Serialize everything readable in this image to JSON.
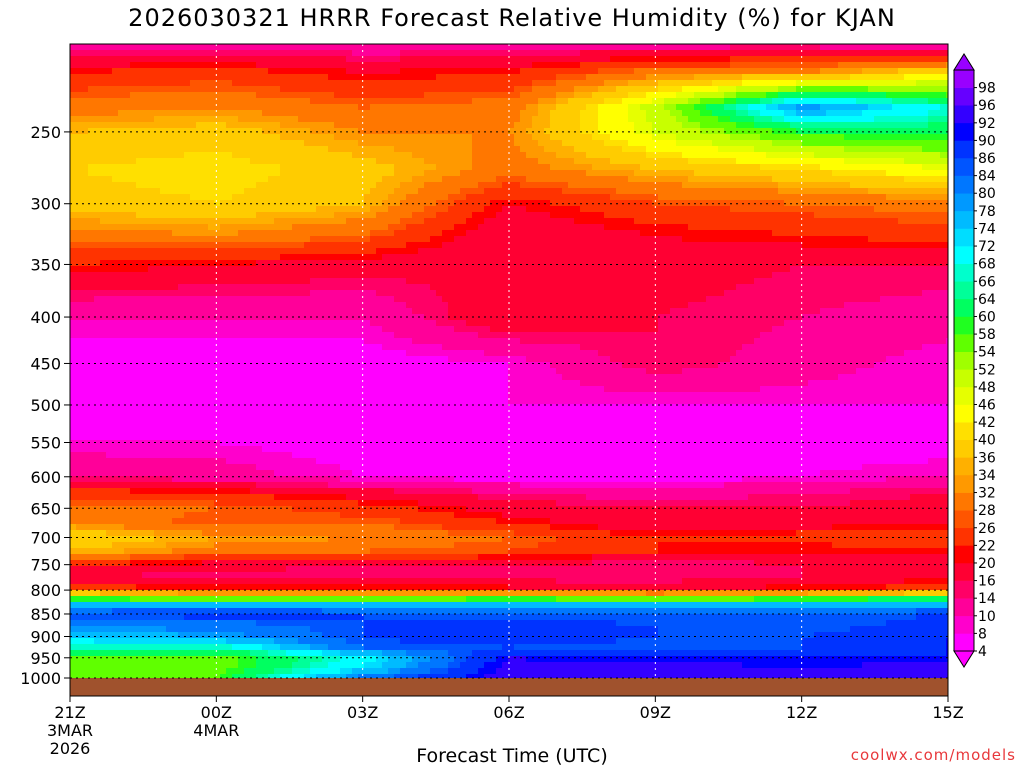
{
  "title": "2026030321 HRRR Forecast Relative Humidity (%) for KJAN",
  "watermark": "coolwx.com/models",
  "chart_data": {
    "type": "heatmap",
    "title": "2026030321 HRRR Forecast Relative Humidity (%) for KJAN",
    "xlabel": "Forecast Time (UTC)",
    "ylabel": "",
    "x_ticks": [
      "21Z",
      "00Z",
      "03Z",
      "06Z",
      "09Z",
      "12Z",
      "15Z"
    ],
    "x_tick_dates": [
      "3MAR\n2026",
      "4MAR",
      "",
      "",
      "",
      "",
      ""
    ],
    "x_range_hours": [
      0,
      18
    ],
    "y_ticks": [
      250,
      300,
      350,
      400,
      450,
      500,
      550,
      600,
      650,
      700,
      750,
      800,
      850,
      900,
      950,
      1000
    ],
    "y_range_hPa": [
      200,
      1000
    ],
    "y_scale": "log-pressure",
    "grid": true,
    "colorbar_levels": [
      4,
      8,
      10,
      14,
      16,
      20,
      22,
      26,
      28,
      32,
      34,
      36,
      40,
      42,
      46,
      48,
      52,
      54,
      58,
      60,
      64,
      66,
      68,
      72,
      74,
      78,
      80,
      84,
      86,
      90,
      92,
      96,
      98
    ],
    "colorbar_colors": [
      "#ff00ff",
      "#ff00cc",
      "#ff0099",
      "#ff0066",
      "#ff0033",
      "#ff0000",
      "#ff3300",
      "#ff5500",
      "#ff7700",
      "#ff9900",
      "#ffb000",
      "#ffcc00",
      "#ffe000",
      "#ffff00",
      "#e6ff00",
      "#c8ff00",
      "#a0ff00",
      "#60ff00",
      "#20ff20",
      "#00ff60",
      "#00ff99",
      "#00ffcc",
      "#00ffff",
      "#00ddff",
      "#00bbff",
      "#0099ff",
      "#0077ff",
      "#0055ff",
      "#0033ff",
      "#0000ff",
      "#3300ff",
      "#6600ff",
      "#9900ff"
    ],
    "colorbar_extend": "both",
    "hours": [
      0,
      3,
      6,
      9,
      12,
      15,
      18
    ],
    "levels_hPa": [
      200,
      215,
      235,
      250,
      275,
      300,
      325,
      350,
      400,
      450,
      500,
      550,
      600,
      625,
      650,
      675,
      700,
      725,
      750,
      775,
      800,
      812,
      825,
      840,
      850,
      875,
      900,
      925,
      950,
      975,
      1000
    ],
    "rh": [
      [
        12,
        12,
        11,
        11,
        12,
        12,
        10
      ],
      [
        22,
        24,
        20,
        22,
        30,
        32,
        40
      ],
      [
        30,
        32,
        28,
        30,
        50,
        80,
        68
      ],
      [
        36,
        38,
        32,
        32,
        48,
        60,
        62
      ],
      [
        40,
        42,
        38,
        30,
        36,
        40,
        46
      ],
      [
        38,
        40,
        36,
        20,
        26,
        28,
        30
      ],
      [
        30,
        32,
        28,
        16,
        20,
        22,
        24
      ],
      [
        22,
        20,
        18,
        16,
        18,
        16,
        16
      ],
      [
        10,
        10,
        10,
        20,
        16,
        14,
        12
      ],
      [
        6,
        6,
        6,
        8,
        16,
        12,
        8
      ],
      [
        6,
        6,
        6,
        8,
        8,
        8,
        8
      ],
      [
        8,
        8,
        6,
        6,
        6,
        6,
        6
      ],
      [
        14,
        12,
        8,
        6,
        6,
        8,
        10
      ],
      [
        24,
        22,
        18,
        14,
        12,
        14,
        16
      ],
      [
        30,
        28,
        24,
        18,
        16,
        16,
        18
      ],
      [
        32,
        26,
        28,
        22,
        16,
        18,
        20
      ],
      [
        40,
        34,
        32,
        28,
        22,
        24,
        26
      ],
      [
        36,
        30,
        28,
        26,
        22,
        20,
        20
      ],
      [
        22,
        18,
        16,
        16,
        14,
        16,
        18
      ],
      [
        16,
        14,
        14,
        14,
        14,
        16,
        20
      ],
      [
        26,
        22,
        22,
        22,
        20,
        22,
        24
      ],
      [
        48,
        44,
        44,
        46,
        44,
        46,
        50
      ],
      [
        72,
        68,
        70,
        72,
        70,
        72,
        74
      ],
      [
        82,
        84,
        82,
        84,
        82,
        80,
        84
      ],
      [
        86,
        88,
        86,
        84,
        84,
        84,
        86
      ],
      [
        80,
        82,
        86,
        88,
        86,
        84,
        88
      ],
      [
        76,
        78,
        86,
        90,
        86,
        86,
        90
      ],
      [
        66,
        66,
        84,
        86,
        84,
        86,
        90
      ],
      [
        58,
        56,
        70,
        92,
        90,
        90,
        90
      ],
      [
        54,
        56,
        72,
        94,
        94,
        92,
        94
      ],
      [
        54,
        58,
        82,
        94,
        94,
        94,
        96
      ]
    ],
    "surface": {
      "color": "#a0522d",
      "label": ""
    }
  }
}
